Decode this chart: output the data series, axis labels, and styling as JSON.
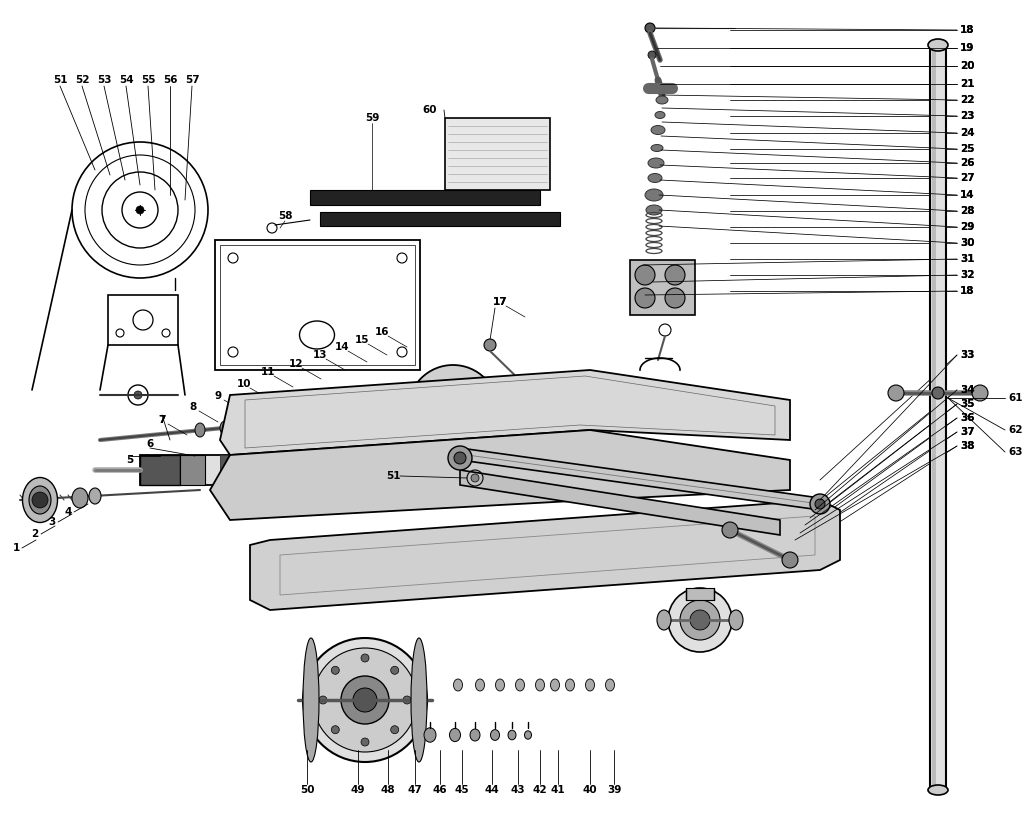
{
  "bg_color": "#ffffff",
  "lc": "#000000",
  "fs": 7.0,
  "fs_bold": 7.5,
  "figsize": [
    10.24,
    8.32
  ],
  "dpi": 100,
  "right_labels": [
    [
      "18",
      960,
      30
    ],
    [
      "19",
      960,
      48
    ],
    [
      "20",
      960,
      66
    ],
    [
      "21",
      960,
      84
    ],
    [
      "22",
      960,
      100
    ],
    [
      "23",
      960,
      116
    ],
    [
      "24",
      960,
      133
    ],
    [
      "25",
      960,
      149
    ],
    [
      "26",
      960,
      163
    ],
    [
      "27",
      960,
      178
    ],
    [
      "14",
      960,
      195
    ],
    [
      "28",
      960,
      211
    ],
    [
      "29",
      960,
      227
    ],
    [
      "30",
      960,
      243
    ],
    [
      "31",
      960,
      259
    ],
    [
      "32",
      960,
      275
    ],
    [
      "18",
      960,
      291
    ]
  ],
  "right_lower_labels": [
    [
      "33",
      960,
      355
    ],
    [
      "34",
      960,
      390
    ],
    [
      "35",
      960,
      404
    ],
    [
      "36",
      960,
      418
    ],
    [
      "37",
      960,
      432
    ],
    [
      "38",
      960,
      446
    ]
  ],
  "handle_labels": [
    [
      "61",
      1008,
      398
    ],
    [
      "62",
      1008,
      430
    ],
    [
      "63",
      1008,
      452
    ]
  ],
  "top_saddle_labels": [
    [
      "51",
      60,
      80
    ],
    [
      "52",
      82,
      80
    ],
    [
      "53",
      104,
      80
    ],
    [
      "54",
      126,
      80
    ],
    [
      "55",
      148,
      80
    ],
    [
      "56",
      170,
      80
    ],
    [
      "57",
      192,
      80
    ]
  ],
  "pump_area_labels": [
    [
      "58",
      285,
      116
    ],
    [
      "59",
      372,
      118
    ],
    [
      "60",
      430,
      110
    ]
  ],
  "center_labels": [
    [
      "7",
      162,
      420
    ],
    [
      "8",
      193,
      407
    ],
    [
      "9",
      218,
      396
    ],
    [
      "10",
      244,
      384
    ],
    [
      "11",
      268,
      372
    ],
    [
      "12",
      296,
      364
    ],
    [
      "13",
      320,
      355
    ],
    [
      "14",
      342,
      347
    ],
    [
      "15",
      362,
      340
    ],
    [
      "16",
      382,
      332
    ],
    [
      "17",
      500,
      302
    ]
  ],
  "left_labels": [
    [
      "1",
      16,
      548
    ],
    [
      "2",
      35,
      534
    ],
    [
      "3",
      52,
      522
    ],
    [
      "4",
      68,
      512
    ],
    [
      "5",
      130,
      460
    ],
    [
      "6",
      150,
      444
    ]
  ],
  "mid_label_51": [
    "51",
    393,
    476
  ],
  "bottom_labels": [
    [
      "50",
      307,
      790
    ],
    [
      "49",
      358,
      790
    ],
    [
      "48",
      388,
      790
    ],
    [
      "47",
      415,
      790
    ],
    [
      "46",
      440,
      790
    ],
    [
      "45",
      462,
      790
    ],
    [
      "44",
      492,
      790
    ],
    [
      "43",
      518,
      790
    ],
    [
      "42",
      540,
      790
    ],
    [
      "41",
      558,
      790
    ],
    [
      "40",
      590,
      790
    ],
    [
      "39",
      614,
      790
    ]
  ]
}
